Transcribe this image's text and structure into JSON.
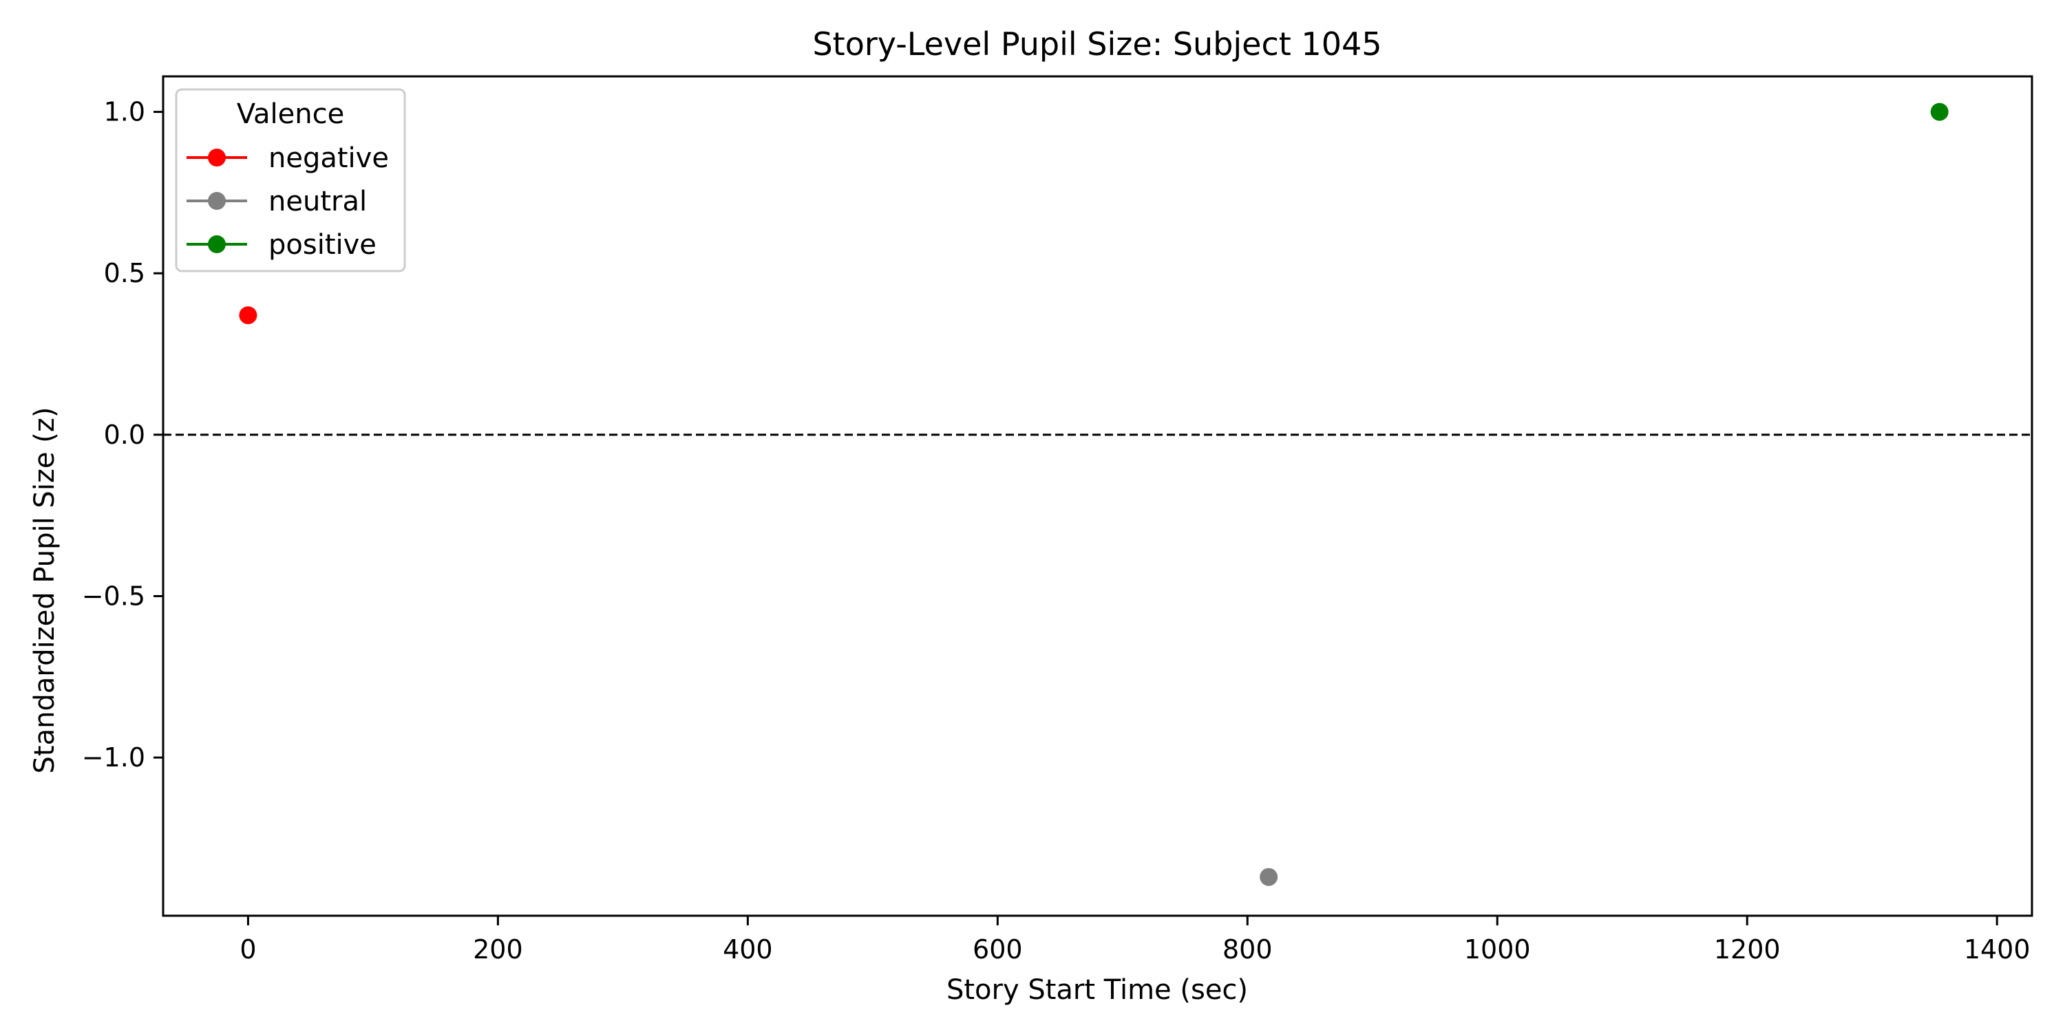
{
  "chart_data": {
    "type": "scatter",
    "title": "Story-Level Pupil Size: Subject 1045",
    "xlabel": "Story Start Time (sec)",
    "ylabel": "Standardized Pupil Size (z)",
    "xlim": [
      -68,
      1428
    ],
    "ylim": [
      -1.49,
      1.11
    ],
    "xticks": [
      0,
      200,
      400,
      600,
      800,
      1000,
      1200,
      1400
    ],
    "xtick_labels": [
      "0",
      "200",
      "400",
      "600",
      "800",
      "1000",
      "1200",
      "1400"
    ],
    "yticks": [
      1.0,
      0.5,
      0.0,
      -0.5,
      -1.0
    ],
    "ytick_labels": [
      "1.0",
      "0.5",
      "0.0",
      "−0.5",
      "−1.0"
    ],
    "reference_line": {
      "y": 0.0,
      "style": "dashed",
      "color": "#000000"
    },
    "grid": false,
    "legend": {
      "title": "Valence",
      "position": "top-left"
    },
    "series": [
      {
        "name": "negative",
        "color": "#ff0000",
        "points": [
          {
            "x": 0,
            "y": 0.37
          }
        ]
      },
      {
        "name": "neutral",
        "color": "#808080",
        "points": [
          {
            "x": 817,
            "y": -1.37
          }
        ]
      },
      {
        "name": "positive",
        "color": "#008000",
        "points": [
          {
            "x": 1354,
            "y": 1.0
          }
        ]
      }
    ]
  }
}
